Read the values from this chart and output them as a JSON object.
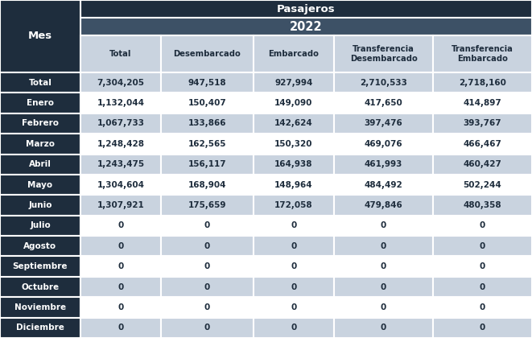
{
  "title_top": "Pasajeros",
  "title_year": "2022",
  "col_header": [
    "Total",
    "Desembarcado",
    "Embarcado",
    "Transferencia\nDesembarcado",
    "Transferencia\nEmbarcado"
  ],
  "row_header": [
    "Total",
    "Enero",
    "Febrero",
    "Marzo",
    "Abril",
    "Mayo",
    "Junio",
    "Julio",
    "Agosto",
    "Septiembre",
    "Octubre",
    "Noviembre",
    "Diciembre"
  ],
  "data": [
    [
      "7,304,205",
      "947,518",
      "927,994",
      "2,710,533",
      "2,718,160"
    ],
    [
      "1,132,044",
      "150,407",
      "149,090",
      "417,650",
      "414,897"
    ],
    [
      "1,067,733",
      "133,866",
      "142,624",
      "397,476",
      "393,767"
    ],
    [
      "1,248,428",
      "162,565",
      "150,320",
      "469,076",
      "466,467"
    ],
    [
      "1,243,475",
      "156,117",
      "164,938",
      "461,993",
      "460,427"
    ],
    [
      "1,304,604",
      "168,904",
      "148,964",
      "484,492",
      "502,244"
    ],
    [
      "1,307,921",
      "175,659",
      "172,058",
      "479,846",
      "480,358"
    ],
    [
      "0",
      "0",
      "0",
      "0",
      "0"
    ],
    [
      "0",
      "0",
      "0",
      "0",
      "0"
    ],
    [
      "0",
      "0",
      "0",
      "0",
      "0"
    ],
    [
      "0",
      "0",
      "0",
      "0",
      "0"
    ],
    [
      "0",
      "0",
      "0",
      "0",
      "0"
    ],
    [
      "0",
      "0",
      "0",
      "0",
      "0"
    ]
  ],
  "dark_bg": "#1E2D3D",
  "medium_dark_bg": "#3D5166",
  "col_header_bg": "#C9D3DF",
  "light_row_bg": "#C9D3DF",
  "white_row_bg": "#FFFFFF",
  "dark_text": "#FFFFFF",
  "dark_cell_text": "#1E2D3D",
  "border_color": "#FFFFFF",
  "fig_w": 6.61,
  "fig_h": 4.2,
  "dpi": 100
}
